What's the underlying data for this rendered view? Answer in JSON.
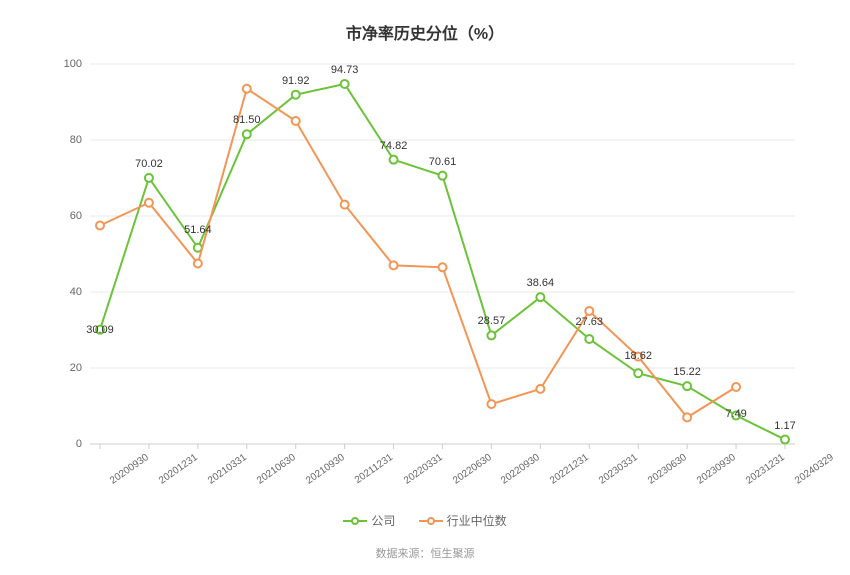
{
  "chart": {
    "type": "line",
    "title": "市净率历史分位（%）",
    "title_fontsize": 16,
    "background_color": "#ffffff",
    "grid_color": "#e8e8e8",
    "axis_color": "#cccccc",
    "text_color": "#666666",
    "label_fontsize": 11,
    "ylim": [
      0,
      100
    ],
    "ytick_step": 20,
    "yticks": [
      0,
      20,
      40,
      60,
      80,
      100
    ],
    "categories": [
      "20200930",
      "20201231",
      "20210331",
      "20210630",
      "20210930",
      "20211231",
      "20220331",
      "20220630",
      "20220930",
      "20221231",
      "20230331",
      "20230630",
      "20230930",
      "20231231",
      "20240329"
    ],
    "series": [
      {
        "name": "公司",
        "color": "#6bc33a",
        "marker": "circle",
        "values": [
          30.09,
          70.02,
          51.64,
          81.5,
          91.92,
          94.73,
          74.82,
          70.61,
          28.57,
          38.64,
          27.63,
          18.62,
          15.22,
          7.49,
          1.17
        ]
      },
      {
        "name": "行业中位数",
        "color": "#f39555",
        "marker": "circle",
        "values": [
          57.5,
          63.5,
          47.5,
          93.5,
          85.0,
          63.0,
          47.0,
          46.5,
          10.5,
          14.5,
          35.0,
          23.0,
          7.0,
          15.0,
          null
        ]
      }
    ],
    "dataLabels": [
      {
        "idx": 0,
        "v": "30.09",
        "dy": 12
      },
      {
        "idx": 1,
        "v": "70.02",
        "dy": -2
      },
      {
        "idx": 2,
        "v": "51.64",
        "dy": -6
      },
      {
        "idx": 3,
        "v": "81.50",
        "dy": -2
      },
      {
        "idx": 4,
        "v": "91.92",
        "dy": -2
      },
      {
        "idx": 5,
        "v": "94.73",
        "dy": -2
      },
      {
        "idx": 6,
        "v": "74.82",
        "dy": -2
      },
      {
        "idx": 7,
        "v": "70.61",
        "dy": -2
      },
      {
        "idx": 8,
        "v": "28.57",
        "dy": -2
      },
      {
        "idx": 9,
        "v": "38.64",
        "dy": -2
      },
      {
        "idx": 10,
        "v": "27.63",
        "dy": -5
      },
      {
        "idx": 11,
        "v": "18.62",
        "dy": -5
      },
      {
        "idx": 12,
        "v": "15.22",
        "dy": -2
      },
      {
        "idx": 13,
        "v": "7.49",
        "dy": 10
      },
      {
        "idx": 14,
        "v": "1.17",
        "dy": -2
      }
    ],
    "line_width": 2,
    "marker_size": 4,
    "legend_position": "bottom"
  },
  "source": {
    "prefix": "数据来源：",
    "name": "恒生聚源"
  }
}
